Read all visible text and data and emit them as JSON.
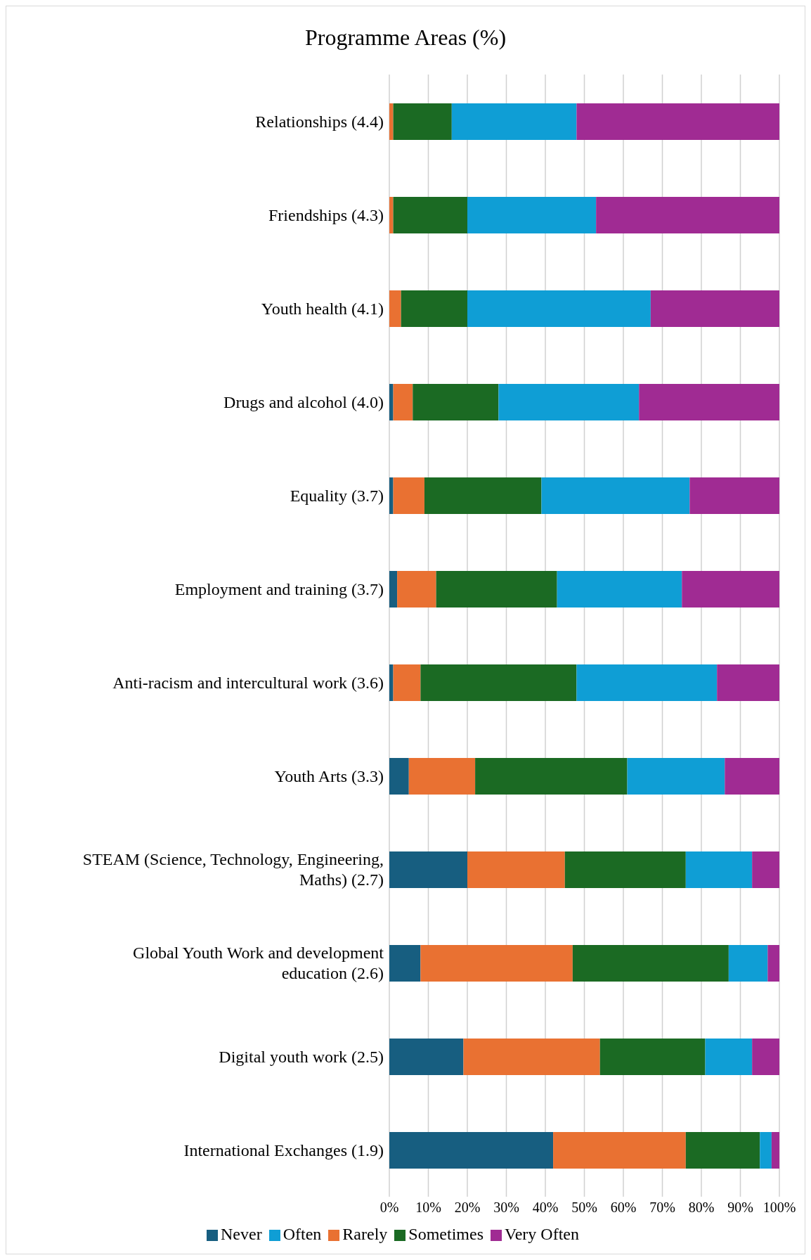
{
  "chart_data": {
    "type": "bar",
    "orientation": "horizontal",
    "stacked": true,
    "title": "Programme Areas (%)",
    "categories": [
      "Relationships (4.4)",
      "Friendships (4.3)",
      "Youth health (4.1)",
      "Drugs and alcohol (4.0)",
      "Equality (3.7)",
      "Employment and training (3.7)",
      "Anti-racism and intercultural work (3.6)",
      "Youth Arts (3.3)",
      "STEAM (Science, Technology, Engineering, Maths) (2.7)",
      "Global Youth Work and development education (2.6)",
      "Digital youth work (2.5)",
      "International Exchanges (1.9)"
    ],
    "series": [
      {
        "name": "Never",
        "color": "#175e80",
        "values": [
          0,
          0,
          0,
          1,
          1,
          2,
          1,
          5,
          20,
          8,
          19,
          42
        ]
      },
      {
        "name": "Rarely",
        "color": "#e97132",
        "values": [
          1,
          1,
          3,
          5,
          8,
          10,
          7,
          17,
          25,
          39,
          35,
          34
        ]
      },
      {
        "name": "Sometimes",
        "color": "#1b6a23",
        "values": [
          15,
          19,
          17,
          22,
          30,
          31,
          40,
          39,
          31,
          40,
          27,
          19
        ]
      },
      {
        "name": "Often",
        "color": "#0f9ed5",
        "values": [
          32,
          33,
          47,
          36,
          38,
          32,
          36,
          25,
          17,
          10,
          12,
          3
        ]
      },
      {
        "name": "Very Often",
        "color": "#a02b93",
        "values": [
          52,
          47,
          33,
          36,
          23,
          25,
          16,
          14,
          7,
          3,
          7,
          2
        ]
      }
    ],
    "xlim": [
      0,
      100
    ],
    "xticks": [
      {
        "value": 0,
        "label": "0%"
      },
      {
        "value": 10,
        "label": "10%"
      },
      {
        "value": 20,
        "label": "20%"
      },
      {
        "value": 30,
        "label": "30%"
      },
      {
        "value": 40,
        "label": "40%"
      },
      {
        "value": 50,
        "label": "50%"
      },
      {
        "value": 60,
        "label": "60%"
      },
      {
        "value": 70,
        "label": "70%"
      },
      {
        "value": 80,
        "label": "80%"
      },
      {
        "value": 90,
        "label": "90%"
      },
      {
        "value": 100,
        "label": "100%"
      }
    ],
    "grid": "x",
    "legend": "bottom"
  }
}
